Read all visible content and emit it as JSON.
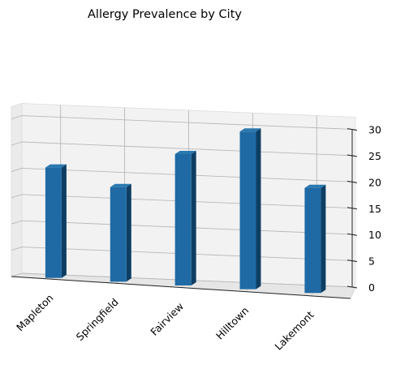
{
  "chart_data": {
    "type": "bar",
    "title": "Allergy Prevalence by City",
    "categories": [
      "Mapleton",
      "Springfield",
      "Fairview",
      "Hilltown",
      "Lakemont"
    ],
    "values": [
      21,
      18,
      25,
      30,
      20
    ],
    "xlabel": "",
    "ylabel": "",
    "ylim": [
      0,
      30
    ],
    "yticks": [
      0,
      5,
      10,
      15,
      20,
      25,
      30
    ],
    "bar_color": "#1f6aa5",
    "grid": true,
    "projection": "3d"
  }
}
